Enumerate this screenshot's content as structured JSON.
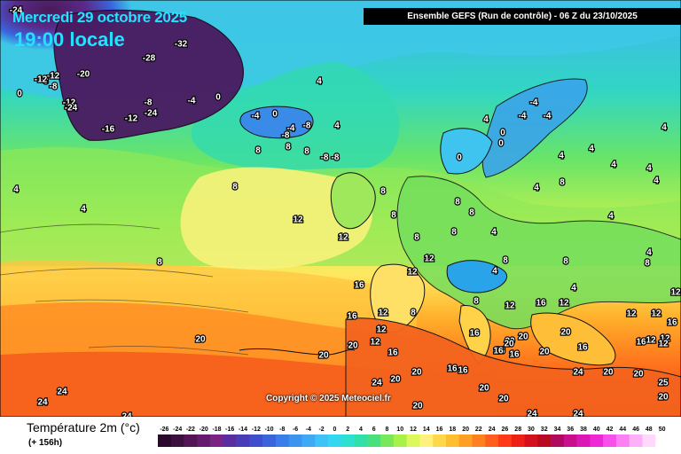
{
  "header": {
    "date_line": "Mercredi 29 octobre 2025",
    "time_line": "19:00 locale",
    "run_info": "Ensemble GEFS  (Run de contrôle)  -  06 Z du 23/10/2025"
  },
  "copyright": "Copyright © 2025 Meteociel.fr",
  "legend": {
    "title": "Température 2m (°c)",
    "lead_time": "(+ 156h)",
    "steps": [
      {
        "v": "-26",
        "c": "#2a0a2a"
      },
      {
        "v": "-24",
        "c": "#3d0f40"
      },
      {
        "v": "-22",
        "c": "#521657"
      },
      {
        "v": "-20",
        "c": "#661c6e"
      },
      {
        "v": "-18",
        "c": "#7a2484"
      },
      {
        "v": "-16",
        "c": "#5a2ea0"
      },
      {
        "v": "-14",
        "c": "#4a3cb8"
      },
      {
        "v": "-12",
        "c": "#3f4fcc"
      },
      {
        "v": "-10",
        "c": "#3a64dc"
      },
      {
        "v": "-8",
        "c": "#3a7ce8"
      },
      {
        "v": "-6",
        "c": "#3d93f0"
      },
      {
        "v": "-4",
        "c": "#3eaaf5"
      },
      {
        "v": "-2",
        "c": "#3fc2f8"
      },
      {
        "v": "0",
        "c": "#35d6f0"
      },
      {
        "v": "2",
        "c": "#2ee0d0"
      },
      {
        "v": "4",
        "c": "#30e0a8"
      },
      {
        "v": "6",
        "c": "#48e07c"
      },
      {
        "v": "8",
        "c": "#78e85a"
      },
      {
        "v": "10",
        "c": "#a8f04a"
      },
      {
        "v": "12",
        "c": "#dcf85a"
      },
      {
        "v": "14",
        "c": "#fff27a"
      },
      {
        "v": "16",
        "c": "#ffd84a"
      },
      {
        "v": "18",
        "c": "#ffbd30"
      },
      {
        "v": "20",
        "c": "#ffa024"
      },
      {
        "v": "22",
        "c": "#ff8020"
      },
      {
        "v": "24",
        "c": "#ff5e1c"
      },
      {
        "v": "26",
        "c": "#ff3a18"
      },
      {
        "v": "28",
        "c": "#ee1f16"
      },
      {
        "v": "30",
        "c": "#d4101c"
      },
      {
        "v": "32",
        "c": "#b80a22"
      },
      {
        "v": "34",
        "c": "#b00a60"
      },
      {
        "v": "36",
        "c": "#c8108c"
      },
      {
        "v": "38",
        "c": "#dc18b4"
      },
      {
        "v": "40",
        "c": "#ee28d4"
      },
      {
        "v": "42",
        "c": "#f850ec"
      },
      {
        "v": "44",
        "c": "#fb80f2"
      },
      {
        "v": "46",
        "c": "#fdb0f8"
      },
      {
        "v": "48",
        "c": "#ffd8fc"
      },
      {
        "v": "50",
        "c": "#ffffff"
      }
    ]
  },
  "map_labels": [
    {
      "t": "-24"
    },
    {
      "t": "-32"
    },
    {
      "t": "-28"
    },
    {
      "t": "-20"
    },
    {
      "t": "-12"
    },
    {
      "t": "-8"
    },
    {
      "t": "-8"
    },
    {
      "t": "0"
    },
    {
      "t": "-12"
    },
    {
      "t": "-12"
    },
    {
      "t": "-24"
    },
    {
      "t": "-16"
    },
    {
      "t": "-12"
    },
    {
      "t": "-24"
    },
    {
      "t": "-8"
    },
    {
      "t": "-4"
    },
    {
      "t": "0"
    },
    {
      "t": "4"
    },
    {
      "t": "-4"
    },
    {
      "t": "0"
    },
    {
      "t": "-4"
    },
    {
      "t": "-8"
    },
    {
      "t": "-8"
    },
    {
      "t": "4"
    },
    {
      "t": "8"
    },
    {
      "t": "8"
    },
    {
      "t": "8"
    },
    {
      "t": "-8"
    },
    {
      "t": "-8"
    },
    {
      "t": "4"
    },
    {
      "t": "4"
    },
    {
      "t": "8"
    },
    {
      "t": "12"
    },
    {
      "t": "12"
    },
    {
      "t": "8"
    },
    {
      "t": "8"
    },
    {
      "t": "8"
    },
    {
      "t": "8"
    },
    {
      "t": "12"
    },
    {
      "t": "12"
    },
    {
      "t": "16"
    },
    {
      "t": "16"
    },
    {
      "t": "12"
    },
    {
      "t": "12"
    },
    {
      "t": "8"
    },
    {
      "t": "12"
    },
    {
      "t": "20"
    },
    {
      "t": "20"
    },
    {
      "t": "20"
    },
    {
      "t": "16"
    },
    {
      "t": "20"
    },
    {
      "t": "24"
    },
    {
      "t": "20"
    },
    {
      "t": "16"
    },
    {
      "t": "16"
    },
    {
      "t": "20"
    },
    {
      "t": "24"
    },
    {
      "t": "24"
    },
    {
      "t": "24"
    },
    {
      "t": "20"
    },
    {
      "t": "20"
    },
    {
      "t": "16"
    },
    {
      "t": "16"
    },
    {
      "t": "20"
    },
    {
      "t": "20"
    },
    {
      "t": "24"
    },
    {
      "t": "24"
    },
    {
      "t": "20"
    },
    {
      "t": "-4"
    },
    {
      "t": "-4"
    },
    {
      "t": "-4"
    },
    {
      "t": "0"
    },
    {
      "t": "4"
    },
    {
      "t": "0"
    },
    {
      "t": "0"
    },
    {
      "t": "4"
    },
    {
      "t": "4"
    },
    {
      "t": "4"
    },
    {
      "t": "4"
    },
    {
      "t": "4"
    },
    {
      "t": "4"
    },
    {
      "t": "4"
    },
    {
      "t": "4"
    },
    {
      "t": "8"
    },
    {
      "t": "8"
    },
    {
      "t": "8"
    },
    {
      "t": "8"
    },
    {
      "t": "4"
    },
    {
      "t": "4"
    },
    {
      "t": "8"
    },
    {
      "t": "8"
    },
    {
      "t": "8"
    },
    {
      "t": "12"
    },
    {
      "t": "12"
    },
    {
      "t": "4"
    },
    {
      "t": "4"
    },
    {
      "t": "8"
    },
    {
      "t": "12"
    },
    {
      "t": "12"
    },
    {
      "t": "12"
    },
    {
      "t": "16"
    },
    {
      "t": "16"
    },
    {
      "t": "12"
    },
    {
      "t": "12"
    },
    {
      "t": "16"
    },
    {
      "t": "20"
    },
    {
      "t": "16"
    },
    {
      "t": "20"
    },
    {
      "t": "16"
    },
    {
      "t": "16"
    },
    {
      "t": "20"
    },
    {
      "t": "24"
    },
    {
      "t": "20"
    },
    {
      "t": "25"
    },
    {
      "t": "20"
    },
    {
      "t": "12"
    }
  ]
}
